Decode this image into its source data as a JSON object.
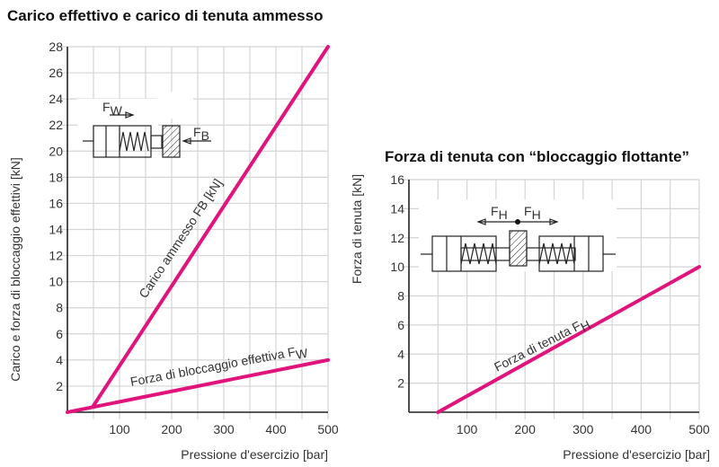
{
  "colors": {
    "series": "#e0147c",
    "grid": "#d4d4d4",
    "axis": "#222222"
  },
  "chart_data": [
    {
      "type": "line",
      "title": "Carico effettivo e carico di tenuta ammesso",
      "xlabel": "Pressione d'esercizio [bar]",
      "ylabel": "Carico e forza di bloccaggio effettivi [kN]",
      "xlim": [
        0,
        500
      ],
      "ylim": [
        0,
        28
      ],
      "xticks": [
        100,
        200,
        300,
        400,
        500
      ],
      "yticks": [
        2,
        4,
        6,
        8,
        10,
        12,
        14,
        16,
        18,
        20,
        22,
        24,
        26,
        28
      ],
      "grid": true,
      "series": [
        {
          "name": "Carico ammesso FB [kN]",
          "label": "Carico ammesso FB [kN]",
          "points": [
            [
              50,
              0.5
            ],
            [
              500,
              28
            ]
          ]
        },
        {
          "name": "Forza di bloccaggio effettiva FW",
          "label_main": "Forza di bloccaggio effettiva F",
          "label_sub": "W",
          "points": [
            [
              0,
              0
            ],
            [
              500,
              4
            ]
          ]
        }
      ],
      "diagram": {
        "fw": "F",
        "fw_sub": "W",
        "fb": "F",
        "fb_sub": "B"
      }
    },
    {
      "type": "line",
      "title": "Forza di tenuta con “bloccaggio flottante”",
      "xlabel": "Pressione d'esercizio [bar]",
      "ylabel": "Forza di tenuta [kN]",
      "xlim": [
        0,
        500
      ],
      "ylim": [
        0,
        16
      ],
      "xticks": [
        100,
        200,
        300,
        400,
        500
      ],
      "yticks": [
        2,
        4,
        6,
        8,
        10,
        12,
        14,
        16
      ],
      "grid": true,
      "series": [
        {
          "name": "Forza di tenuta FH",
          "label_main": "Forza di tenuta F",
          "label_sub": "H",
          "points": [
            [
              50,
              0
            ],
            [
              500,
              10
            ]
          ]
        }
      ],
      "diagram": {
        "fh": "F",
        "fh_sub": "H"
      }
    }
  ]
}
